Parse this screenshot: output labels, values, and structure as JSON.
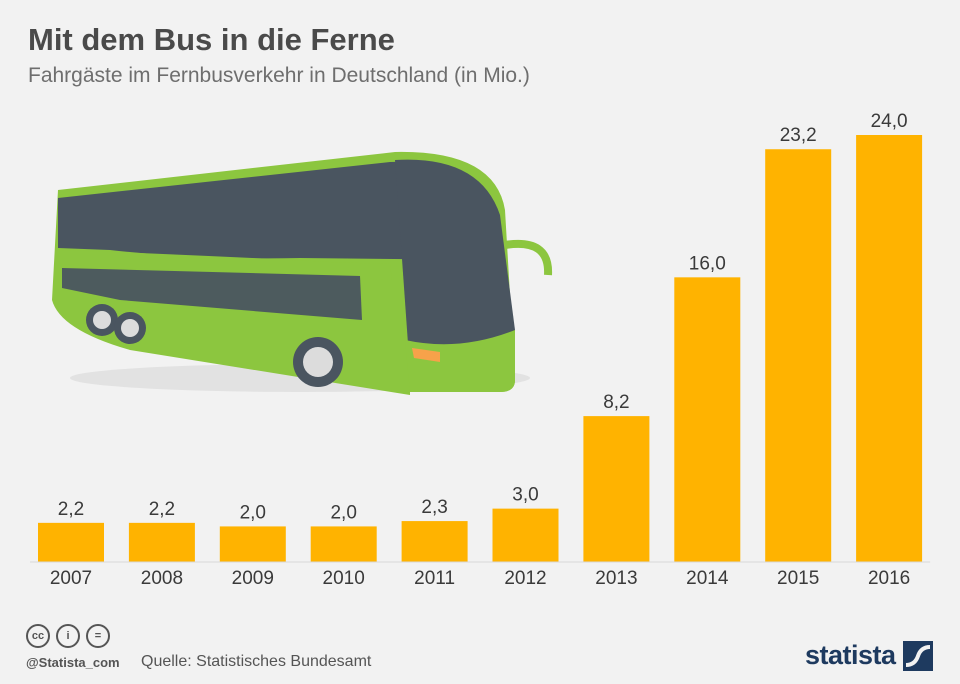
{
  "header": {
    "title": "Mit dem Bus in die Ferne",
    "subtitle": "Fahrgäste im Fernbusverkehr in Deutschland (in Mio.)"
  },
  "colors": {
    "bar": "#ffb300",
    "bus_green": "#8cc63f",
    "bus_dark": "#4a5560",
    "text_dark": "#3a3a3a",
    "background": "#f2f2f2"
  },
  "chart_data": {
    "type": "bar",
    "title": "Mit dem Bus in die Ferne",
    "subtitle": "Fahrgäste im Fernbusverkehr in Deutschland (in Mio.)",
    "categories": [
      "2007",
      "2008",
      "2009",
      "2010",
      "2011",
      "2012",
      "2013",
      "2014",
      "2015",
      "2016"
    ],
    "values": [
      2.2,
      2.2,
      2.0,
      2.0,
      2.3,
      3.0,
      8.2,
      16.0,
      23.2,
      24.0
    ],
    "value_labels": [
      "2,2",
      "2,2",
      "2,0",
      "2,0",
      "2,3",
      "3,0",
      "8,2",
      "16,0",
      "23,2",
      "24,0"
    ],
    "xlabel": "",
    "ylabel": "",
    "ylim": [
      0,
      24.0
    ],
    "grid": false,
    "legend": "none"
  },
  "footer": {
    "handle": "@Statista_com",
    "source": "Quelle: Statistisches Bundesamt",
    "logo": "statista",
    "license_icons": [
      "cc-icon",
      "by-icon",
      "nd-icon"
    ],
    "cc_glyphs": [
      "cc",
      "i",
      "="
    ]
  }
}
